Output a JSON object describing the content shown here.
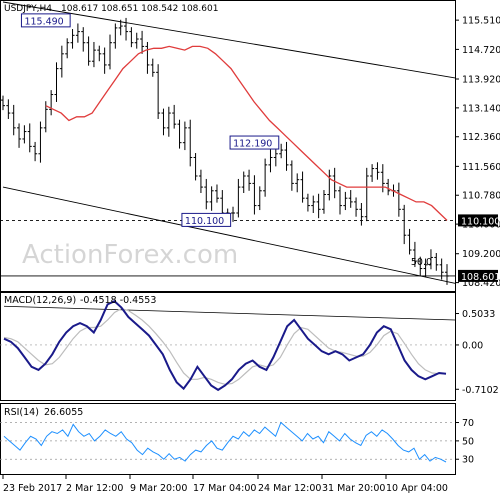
{
  "chart_data": {
    "type": "ohlc",
    "symbol_line": "USDJPY,H4",
    "ohlc_values": "108.617 108.651 108.542 108.601",
    "watermark": "ActionForex.com",
    "main": {
      "y_ticks": [
        "115.510",
        "114.720",
        "113.920",
        "113.140",
        "112.360",
        "111.560",
        "110.780",
        "110.000",
        "109.200",
        "108.420"
      ],
      "price_lines": [
        {
          "value": 110.1,
          "label": "110.100",
          "style": "dashed"
        },
        {
          "value": 108.601,
          "label": "108.601",
          "style": "solid"
        }
      ],
      "annotations": [
        {
          "text": "115.490",
          "x": 8,
          "y": 115.49
        },
        {
          "text": "112.190",
          "x": 47,
          "y": 112.19
        },
        {
          "text": "110.100",
          "x": 38,
          "y": 110.1
        },
        {
          "text": "50.0",
          "x": 77,
          "y": 108.95
        }
      ],
      "trend_lines": [
        {
          "from": [
            0,
            116.0
          ],
          "to": [
            83,
            113.95
          ]
        },
        {
          "from": [
            0,
            111.0
          ],
          "to": [
            83,
            108.4
          ]
        }
      ],
      "closes": [
        113.2,
        113.0,
        112.6,
        112.3,
        112.5,
        112.1,
        111.9,
        112.6,
        113.1,
        113.5,
        114.2,
        114.6,
        114.9,
        115.1,
        115.2,
        114.9,
        114.4,
        114.7,
        114.6,
        114.3,
        114.9,
        115.3,
        115.35,
        115.2,
        114.9,
        115.0,
        114.8,
        114.3,
        114.1,
        113.0,
        112.6,
        113.0,
        112.7,
        112.2,
        112.6,
        111.8,
        111.3,
        111.0,
        110.6,
        110.9,
        110.7,
        110.3,
        110.3,
        110.3,
        111.0,
        111.3,
        111.1,
        110.5,
        110.9,
        111.6,
        111.8,
        111.9,
        112.0,
        111.6,
        111.1,
        111.2,
        110.7,
        110.5,
        110.6,
        110.4,
        110.8,
        111.3,
        110.9,
        110.5,
        110.7,
        110.6,
        110.4,
        110.2,
        111.3,
        111.5,
        111.4,
        111.1,
        110.9,
        110.9,
        110.4,
        109.7,
        109.3,
        109.0,
        108.8,
        108.9,
        109.1,
        108.9,
        108.7,
        108.6
      ],
      "sma_closes": [
        113.2,
        113.1,
        113.0,
        112.8,
        112.9,
        112.9,
        113.0,
        113.3,
        113.6,
        113.9,
        114.2,
        114.4,
        114.6,
        114.7,
        114.75,
        114.75,
        114.8,
        114.75,
        114.7,
        114.8,
        114.8,
        114.75,
        114.6,
        114.4,
        114.2,
        113.9,
        113.6,
        113.3,
        113.05,
        112.8,
        112.6,
        112.4,
        112.2,
        112.0,
        111.8,
        111.6,
        111.4,
        111.2,
        111.1,
        111.0,
        111.0,
        111.0,
        111.0,
        111.0,
        111.0,
        110.9,
        110.8,
        110.7,
        110.6,
        110.6,
        110.5,
        110.3,
        110.1
      ]
    },
    "macd": {
      "label": "MACD(12,26,9)",
      "values": "-0.4518 -0.4553",
      "y_ticks": [
        "0.5033",
        "0.00",
        "-0.7102"
      ],
      "macd_line": [
        0.1,
        0.05,
        -0.05,
        -0.2,
        -0.35,
        -0.4,
        -0.3,
        -0.15,
        0.05,
        0.2,
        0.3,
        0.35,
        0.3,
        0.2,
        0.4,
        0.65,
        0.7,
        0.6,
        0.45,
        0.35,
        0.25,
        0.15,
        0.0,
        -0.15,
        -0.4,
        -0.6,
        -0.7,
        -0.55,
        -0.35,
        -0.5,
        -0.65,
        -0.72,
        -0.65,
        -0.55,
        -0.4,
        -0.3,
        -0.25,
        -0.35,
        -0.4,
        -0.2,
        0.05,
        0.3,
        0.4,
        0.25,
        0.1,
        0.0,
        -0.1,
        -0.15,
        -0.1,
        -0.15,
        -0.25,
        -0.2,
        -0.15,
        0.0,
        0.2,
        0.3,
        0.25,
        0.0,
        -0.25,
        -0.4,
        -0.5,
        -0.55,
        -0.5,
        -0.45,
        -0.46
      ],
      "signal_line": [
        0.12,
        0.1,
        0.05,
        -0.05,
        -0.15,
        -0.25,
        -0.32,
        -0.3,
        -0.2,
        -0.05,
        0.1,
        0.22,
        0.28,
        0.28,
        0.3,
        0.4,
        0.52,
        0.58,
        0.55,
        0.48,
        0.4,
        0.3,
        0.18,
        0.05,
        -0.1,
        -0.28,
        -0.45,
        -0.55,
        -0.55,
        -0.52,
        -0.55,
        -0.6,
        -0.63,
        -0.62,
        -0.55,
        -0.45,
        -0.35,
        -0.32,
        -0.35,
        -0.32,
        -0.2,
        0.0,
        0.18,
        0.28,
        0.25,
        0.15,
        0.05,
        -0.05,
        -0.1,
        -0.12,
        -0.15,
        -0.18,
        -0.18,
        -0.12,
        0.0,
        0.15,
        0.22,
        0.18,
        0.02,
        -0.15,
        -0.3,
        -0.4,
        -0.45,
        -0.46,
        -0.46
      ],
      "trend_line": {
        "from": [
          0,
          0.62
        ],
        "to": [
          64,
          0.4
        ]
      }
    },
    "rsi": {
      "label": "RSI(14)",
      "value": "26.6055",
      "y_ticks": [
        "70",
        "50",
        "30"
      ],
      "values": [
        55,
        50,
        45,
        40,
        48,
        55,
        52,
        45,
        55,
        60,
        58,
        62,
        55,
        68,
        60,
        55,
        58,
        50,
        55,
        62,
        58,
        55,
        60,
        52,
        48,
        40,
        35,
        42,
        38,
        35,
        30,
        36,
        30,
        32,
        28,
        35,
        40,
        38,
        45,
        50,
        42,
        40,
        48,
        55,
        52,
        60,
        55,
        62,
        58,
        65,
        60,
        55,
        70,
        65,
        60,
        55,
        50,
        58,
        52,
        55,
        48,
        60,
        55,
        50,
        58,
        52,
        48,
        45,
        56,
        60,
        55,
        62,
        58,
        52,
        45,
        40,
        38,
        42,
        30,
        35,
        28,
        32,
        30,
        27
      ]
    },
    "x_labels": [
      "23 Feb 2017",
      "2 Mar 12:00",
      "9 Mar 20:00",
      "17 Mar 04:00",
      "24 Mar 12:00",
      "31 Mar 20:00",
      "10 Apr 04:00"
    ]
  }
}
